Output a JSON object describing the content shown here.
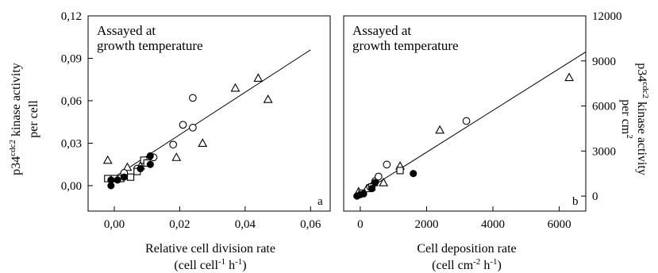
{
  "chart_data": [
    {
      "panel": "a",
      "type": "scatter",
      "annotation_lines": [
        "Assayed at",
        "growth temperature"
      ],
      "xlabel_lines": [
        "Relative cell division rate",
        "(cell cell-1 h-1)"
      ],
      "ylabel_lines": [
        "p34cdc2 kinase activity",
        "per cell"
      ],
      "xlim": [
        -0.008,
        0.066
      ],
      "ylim": [
        -0.018,
        0.12
      ],
      "xticks": [
        "0,00",
        "0,02",
        "0,04",
        "0,06"
      ],
      "xtick_values": [
        0,
        0.02,
        0.04,
        0.06
      ],
      "yticks": [
        "0,00",
        "0,03",
        "0,06",
        "0,09",
        "0,12"
      ],
      "ytick_values": [
        0,
        0.03,
        0.06,
        0.09,
        0.12
      ],
      "yaxis_side": "left",
      "grid": false,
      "fit_line": {
        "x1": -0.002,
        "y1": 0.003,
        "x2": 0.06,
        "y2": 0.096
      },
      "series": [
        {
          "marker": "triangle",
          "points": [
            [
              -0.002,
              0.018
            ],
            [
              0.004,
              0.013
            ],
            [
              0.008,
              0.014
            ],
            [
              0.019,
              0.02
            ],
            [
              0.027,
              0.03
            ],
            [
              0.037,
              0.069
            ],
            [
              0.044,
              0.076
            ],
            [
              0.047,
              0.061
            ]
          ]
        },
        {
          "marker": "circle",
          "points": [
            [
              0.003,
              0.009
            ],
            [
              0.007,
              0.012
            ],
            [
              0.012,
              0.02
            ],
            [
              0.018,
              0.029
            ],
            [
              0.021,
              0.043
            ],
            [
              0.024,
              0.041
            ],
            [
              0.024,
              0.062
            ]
          ]
        },
        {
          "marker": "square",
          "points": [
            [
              -0.002,
              0.005
            ],
            [
              0.0,
              0.005
            ],
            [
              0.002,
              0.005
            ],
            [
              0.005,
              0.006
            ],
            [
              0.007,
              0.01
            ],
            [
              0.009,
              0.018
            ],
            [
              0.01,
              0.016
            ]
          ]
        },
        {
          "marker": "filled-circle",
          "points": [
            [
              -0.001,
              0.0
            ],
            [
              -0.001,
              0.004
            ],
            [
              0.001,
              0.004
            ],
            [
              0.003,
              0.006
            ],
            [
              0.008,
              0.012
            ],
            [
              0.011,
              0.015
            ],
            [
              0.011,
              0.021
            ]
          ]
        }
      ]
    },
    {
      "panel": "b",
      "type": "scatter",
      "annotation_lines": [
        "Assayed at",
        "growth temperature"
      ],
      "xlabel_lines": [
        "Cell deposition rate",
        "(cell cm-2 h-1)"
      ],
      "ylabel_lines": [
        "p34cdc2 kinase activity",
        "per cm2"
      ],
      "xlim": [
        -500,
        6800
      ],
      "ylim": [
        -1000,
        12000
      ],
      "xticks": [
        "0",
        "2000",
        "4000",
        "6000"
      ],
      "xtick_values": [
        0,
        2000,
        4000,
        6000
      ],
      "yticks": [
        "0",
        "3000",
        "6000",
        "9000",
        "12000"
      ],
      "ytick_values": [
        0,
        3000,
        6000,
        9000,
        12000
      ],
      "yaxis_side": "right",
      "grid": false,
      "fit_line": {
        "x1": -100,
        "y1": 0,
        "x2": 6800,
        "y2": 9600
      },
      "series": [
        {
          "marker": "triangle",
          "points": [
            [
              -50,
              300
            ],
            [
              200,
              500
            ],
            [
              400,
              900
            ],
            [
              700,
              900
            ],
            [
              1200,
              2000
            ],
            [
              2400,
              4400
            ],
            [
              6300,
              7900
            ]
          ]
        },
        {
          "marker": "circle",
          "points": [
            [
              300,
              600
            ],
            [
              450,
              1000
            ],
            [
              550,
              1300
            ],
            [
              800,
              2100
            ],
            [
              3200,
              5000
            ]
          ]
        },
        {
          "marker": "square",
          "points": [
            [
              50,
              200
            ],
            [
              350,
              600
            ],
            [
              1200,
              1700
            ]
          ]
        },
        {
          "marker": "filled-circle",
          "points": [
            [
              -100,
              0
            ],
            [
              0,
              100
            ],
            [
              100,
              150
            ],
            [
              350,
              500
            ],
            [
              450,
              900
            ],
            [
              1600,
              1500
            ]
          ]
        }
      ]
    }
  ]
}
